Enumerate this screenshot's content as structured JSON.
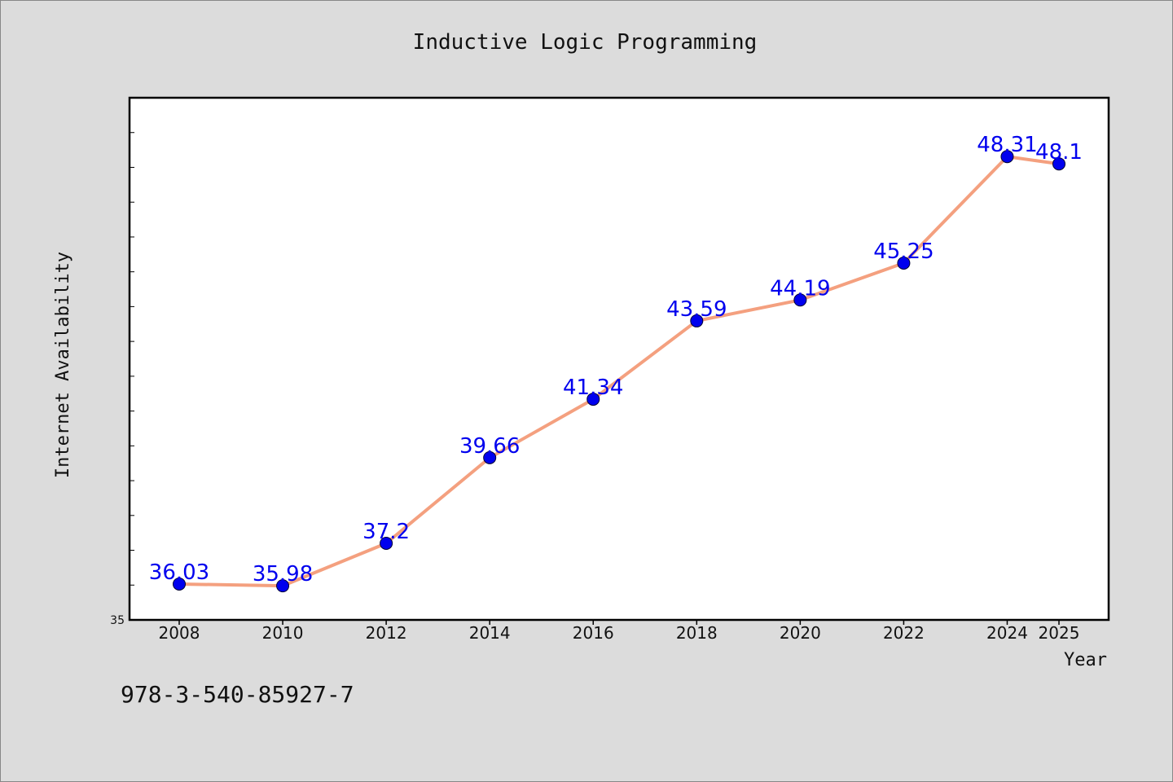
{
  "chart_data": {
    "type": "line",
    "title": "Inductive Logic Programming",
    "xlabel": "Year",
    "ylabel": "Internet Availability",
    "categories": [
      "2008",
      "2010",
      "2012",
      "2014",
      "2016",
      "2018",
      "2020",
      "2022",
      "2024",
      "2025"
    ],
    "series": [
      {
        "values": [
          36.03,
          35.98,
          37.2,
          39.66,
          41.34,
          43.59,
          44.19,
          45.25,
          48.31,
          48.1
        ],
        "labels": [
          "36.03",
          "35.98",
          "37.2",
          "39.66",
          "41.34",
          "43.59",
          "44.19",
          "45.25",
          "48.31",
          "48.1"
        ]
      }
    ],
    "ylim": [
      35,
      50
    ],
    "yticks_labeled": [
      "35"
    ],
    "grid": false,
    "line_color": "#f4a07f",
    "marker_color": "#0000ee",
    "label_color": "#0000ee"
  },
  "footnote": "978-3-540-85927-7"
}
